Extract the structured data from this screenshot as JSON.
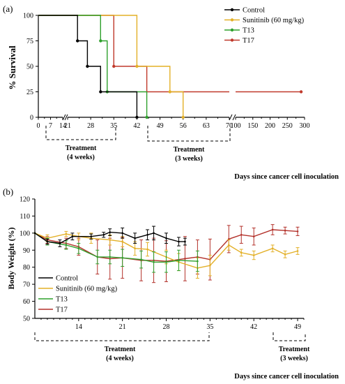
{
  "panels": [
    {
      "label": "(a)",
      "ylabel": "% Survival",
      "xlabel": "Days since cancer cell inoculation",
      "legend": [
        {
          "name": "Control",
          "color": "#000000"
        },
        {
          "name": "Sunitinib (60 mg/kg)",
          "color": "#e3b027"
        },
        {
          "name": "T13",
          "color": "#2ea02c"
        },
        {
          "name": "T17",
          "color": "#c0392b"
        }
      ],
      "treatments": [
        {
          "title": "Treatment",
          "duration": "(4 weeks)"
        },
        {
          "title": "Treatment",
          "duration": "(3 weeks)"
        }
      ]
    },
    {
      "label": "(b)",
      "ylabel": "Body Weight (%)",
      "xlabel": "Days since cancer cell inoculation",
      "legend": [
        {
          "name": "Control",
          "color": "#000000"
        },
        {
          "name": "Sunitinib (60 mg/kg)",
          "color": "#e3b027"
        },
        {
          "name": "T13",
          "color": "#2ea02c"
        },
        {
          "name": "T17",
          "color": "#b3312a"
        }
      ],
      "treatments": [
        {
          "title": "Treatment",
          "duration": "(4 weeks)"
        },
        {
          "title": "Treatment",
          "duration": "(3 weeks)"
        }
      ]
    }
  ],
  "chart_data": [
    {
      "type": "line",
      "step": true,
      "ylabel": "% Survival",
      "xlabel": "Days since cancer cell inoculation",
      "ylim": [
        0,
        100
      ],
      "yticks": [
        0,
        25,
        50,
        75,
        100
      ],
      "x_ticks": [
        "0",
        "7",
        "14",
        "21",
        "28",
        "35",
        "42",
        "49",
        "56",
        "63",
        "70",
        "100",
        "150",
        "200",
        "250",
        "300"
      ],
      "x_axis_breaks": [
        [
          14,
          21
        ],
        [
          70,
          100
        ]
      ],
      "legend_position": "top-right",
      "series": [
        {
          "name": "Control",
          "color": "#000000",
          "points": [
            [
              0,
              100
            ],
            [
              24,
              100
            ],
            [
              24,
              75
            ],
            [
              27,
              75
            ],
            [
              27,
              50
            ],
            [
              31,
              50
            ],
            [
              31,
              25
            ],
            [
              42,
              25
            ],
            [
              42,
              0
            ]
          ],
          "markers": [
            [
              24,
              75
            ],
            [
              27,
              50
            ],
            [
              31,
              25
            ],
            [
              42,
              0
            ]
          ]
        },
        {
          "name": "Sunitinib (60 mg/kg)",
          "color": "#e3b027",
          "points": [
            [
              0,
              100
            ],
            [
              42,
              100
            ],
            [
              42,
              50
            ],
            [
              52,
              50
            ],
            [
              52,
              25
            ],
            [
              56,
              25
            ],
            [
              56,
              0
            ]
          ],
          "markers": [
            [
              42,
              50
            ],
            [
              52,
              25
            ],
            [
              56,
              0
            ]
          ]
        },
        {
          "name": "T13",
          "color": "#2ea02c",
          "points": [
            [
              0,
              100
            ],
            [
              31,
              100
            ],
            [
              31,
              75
            ],
            [
              33,
              75
            ],
            [
              33,
              25
            ],
            [
              45,
              25
            ],
            [
              45,
              0
            ]
          ],
          "markers": [
            [
              31,
              75
            ],
            [
              33,
              25
            ],
            [
              45,
              0
            ]
          ]
        },
        {
          "name": "T17",
          "color": "#c0392b",
          "points": [
            [
              0,
              100
            ],
            [
              35,
              100
            ],
            [
              35,
              50
            ],
            [
              45,
              50
            ],
            [
              45,
              25
            ],
            [
              290,
              25
            ]
          ],
          "markers": [
            [
              35,
              50
            ],
            [
              290,
              25
            ]
          ]
        }
      ],
      "treatment_periods": [
        [
          0,
          35
        ],
        [
          49,
          70
        ]
      ]
    },
    {
      "type": "line",
      "ylabel": "Body Weight (%)",
      "xlabel": "Days since cancer cell inoculation",
      "ylim": [
        50,
        120
      ],
      "yticks": [
        50,
        60,
        70,
        80,
        90,
        100,
        110,
        120
      ],
      "xlim": [
        7,
        50
      ],
      "xticks": [
        14,
        21,
        28,
        35,
        42,
        49
      ],
      "legend_position": "bottom-left",
      "series": [
        {
          "name": "Control",
          "color": "#000000",
          "x": [
            7,
            9,
            11,
            13,
            16,
            18,
            19,
            21,
            23,
            25,
            26,
            28,
            30,
            31
          ],
          "y": [
            100,
            95,
            94,
            98,
            98,
            99,
            100.5,
            100,
            97,
            99,
            100,
            97,
            95,
            95
          ],
          "err": [
            0,
            1.5,
            2,
            2,
            1.5,
            1.5,
            2,
            3,
            3,
            3,
            4,
            3,
            2.5,
            2
          ]
        },
        {
          "name": "Sunitinib (60 mg/kg)",
          "color": "#e3b027",
          "x": [
            7,
            9,
            12,
            14,
            16,
            19,
            21,
            23,
            25,
            28,
            30,
            33,
            35,
            38,
            40,
            42,
            45,
            47,
            49
          ],
          "y": [
            100,
            97,
            99.5,
            98,
            97,
            96,
            95,
            91,
            90.5,
            86,
            83,
            79.5,
            81,
            93,
            88.5,
            87,
            91,
            87.5,
            89.5
          ],
          "err": [
            0,
            2,
            1.5,
            2,
            3,
            3,
            3,
            4,
            4,
            4,
            5,
            6,
            6,
            3,
            2,
            2.5,
            2,
            2,
            2
          ]
        },
        {
          "name": "T13",
          "color": "#2ea02c",
          "x": [
            7,
            9,
            12,
            14,
            17,
            19,
            21,
            24,
            26,
            28,
            30,
            33
          ],
          "y": [
            100,
            95,
            93,
            91,
            86,
            86,
            85.5,
            84.5,
            83,
            83,
            84,
            83.5
          ],
          "err": [
            0,
            2,
            2.5,
            3,
            4,
            4,
            5,
            5,
            6,
            6,
            6,
            6
          ]
        },
        {
          "name": "T17",
          "color": "#b3312a",
          "x": [
            7,
            9,
            12,
            14,
            17,
            19,
            21,
            24,
            26,
            28,
            31,
            33,
            35,
            38,
            40,
            42,
            45,
            47,
            49
          ],
          "y": [
            100,
            96,
            94,
            92,
            86,
            85,
            85.5,
            84,
            84,
            83.5,
            85,
            86,
            84.5,
            96.5,
            99,
            98,
            102,
            101.5,
            101
          ],
          "err": [
            0,
            2,
            3,
            5,
            10,
            12,
            12,
            12,
            13,
            12,
            13,
            10,
            12,
            8,
            5,
            5,
            3,
            2,
            2.5
          ]
        }
      ],
      "treatment_periods": [
        [
          7,
          35
        ],
        [
          45,
          50
        ]
      ]
    }
  ]
}
